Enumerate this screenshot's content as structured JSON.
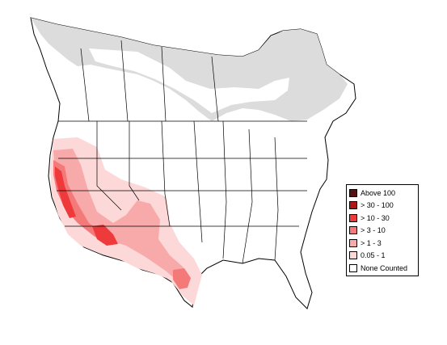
{
  "legend": {
    "items": [
      {
        "label": "Above 100",
        "color": "#5a1010"
      },
      {
        "label": "> 30 - 100",
        "color": "#b01818"
      },
      {
        "label": "> 10 - 30",
        "color": "#ee3a3a"
      },
      {
        "label": "> 3 - 10",
        "color": "#f47a7a"
      },
      {
        "label": "> 1 - 3",
        "color": "#f8aaaa"
      },
      {
        "label": "0.05 - 1",
        "color": "#fcd8d8"
      },
      {
        "label": "None Counted",
        "color": "#ffffff"
      }
    ]
  },
  "colors": {
    "no_data_region": "#dcdcdc",
    "land": "#ffffff",
    "boundary": "#000000"
  }
}
